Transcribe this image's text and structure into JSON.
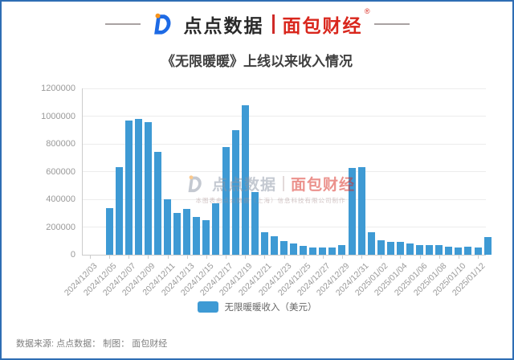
{
  "header": {
    "brand_left": "点点数据",
    "brand_right": "面包财经",
    "reg_mark": "®"
  },
  "title": "《无限暖暖》上线以来收入情况",
  "chart_data": {
    "type": "bar",
    "title": "《无限暖暖》上线以来收入情况",
    "series_name": "无限暖暖收入（美元）",
    "ylim": [
      0,
      1200000
    ],
    "y_ticks": [
      0,
      200000,
      400000,
      600000,
      800000,
      1000000,
      1200000
    ],
    "grid": true,
    "legend_position": "bottom",
    "bar_color": "#3E9AD4",
    "x_tick_labels": [
      "2024/12/03",
      "2024/12/05",
      "2024/12/07",
      "2024/12/09",
      "2024/12/11",
      "2024/12/13",
      "2024/12/15",
      "2024/12/17",
      "2024/12/19",
      "2024/12/21",
      "2024/12/23",
      "2024/12/25",
      "2024/12/27",
      "2024/12/29",
      "2024/12/31",
      "2025/01/02",
      "2025/01/04",
      "2025/01/06",
      "2025/01/08",
      "2025/01/10",
      "2025/01/12"
    ],
    "categories": [
      "2024/12/05",
      "2024/12/06",
      "2024/12/07",
      "2024/12/08",
      "2024/12/09",
      "2024/12/10",
      "2024/12/11",
      "2024/12/12",
      "2024/12/13",
      "2024/12/14",
      "2024/12/15",
      "2024/12/16",
      "2024/12/17",
      "2024/12/18",
      "2024/12/19",
      "2024/12/20",
      "2024/12/21",
      "2024/12/22",
      "2024/12/23",
      "2024/12/24",
      "2024/12/25",
      "2024/12/26",
      "2024/12/27",
      "2024/12/28",
      "2024/12/29",
      "2024/12/30",
      "2024/12/31",
      "2025/01/01",
      "2025/01/02",
      "2025/01/03",
      "2025/01/04",
      "2025/01/05",
      "2025/01/06",
      "2025/01/07",
      "2025/01/08",
      "2025/01/09",
      "2025/01/10",
      "2025/01/11",
      "2025/01/12",
      "2025/01/13"
    ],
    "values": [
      335000,
      630000,
      970000,
      980000,
      955000,
      740000,
      400000,
      300000,
      330000,
      270000,
      250000,
      370000,
      775000,
      900000,
      1080000,
      455000,
      160000,
      135000,
      100000,
      80000,
      65000,
      55000,
      50000,
      55000,
      70000,
      625000,
      630000,
      160000,
      105000,
      90000,
      90000,
      80000,
      70000,
      70000,
      70000,
      60000,
      50000,
      60000,
      55000,
      125000
    ]
  },
  "legend": {
    "label": "无限暖暖收入（美元）"
  },
  "watermark": {
    "brand_left": "点点数据",
    "brand_right": "面包财经",
    "subtext": "本图表由点点数据（上海）信息科技有限公司制作"
  },
  "footer": {
    "source": "数据来源: 点点数据：  制图：  面包财经"
  },
  "colors": {
    "bar": "#3E9AD4",
    "card_border": "#2E6DB4",
    "brand_red": "#D9261C",
    "brand_dark": "#2A2A2A",
    "axis_text": "#999999"
  }
}
